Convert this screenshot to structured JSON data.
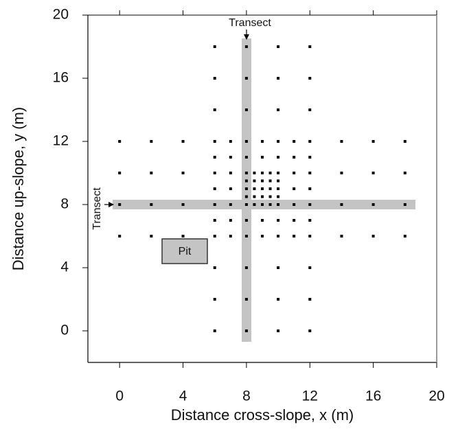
{
  "chart_data": {
    "type": "scatter",
    "x_label": "Distance cross-slope, x (m)",
    "y_label": "Distance up-slope, y (m)",
    "annotations": [
      "Transect",
      "Transect",
      "Pit"
    ],
    "color": "#000000",
    "xlim": [
      -2,
      20
    ],
    "ylim": [
      -2,
      20
    ],
    "xticks": [
      0,
      4,
      8,
      12,
      16,
      20
    ],
    "yticks": [
      0,
      4,
      8,
      12,
      16,
      20
    ],
    "x": [
      0,
      2,
      4,
      6,
      7,
      8,
      9,
      10,
      11,
      12,
      14,
      16,
      18,
      0,
      2,
      4,
      6,
      7,
      8,
      9,
      10,
      11,
      12,
      14,
      16,
      18,
      0,
      2,
      4,
      6,
      7,
      8,
      9,
      10,
      11,
      12,
      14,
      16,
      18,
      0,
      2,
      4,
      6,
      7,
      8,
      9,
      10,
      11,
      12,
      14,
      16,
      18,
      6,
      7,
      8,
      9,
      10,
      11,
      12,
      6,
      7,
      8,
      9,
      10,
      11,
      12,
      6,
      7,
      8,
      9,
      10,
      11,
      12,
      6,
      8,
      10,
      12,
      6,
      8,
      10,
      12,
      6,
      8,
      10,
      12,
      6,
      8,
      10,
      12,
      6,
      8,
      10,
      12,
      6,
      8,
      10,
      12,
      8.5,
      9.5,
      8,
      8.5,
      9,
      9.5,
      10,
      8.5,
      9.5,
      8,
      8.5,
      9,
      9.5,
      10,
      8.5,
      9.5
    ],
    "y": [
      12,
      12,
      12,
      12,
      12,
      12,
      12,
      12,
      12,
      12,
      12,
      12,
      12,
      10,
      10,
      10,
      10,
      10,
      10,
      10,
      10,
      10,
      10,
      10,
      10,
      10,
      8,
      8,
      8,
      8,
      8,
      8,
      8,
      8,
      8,
      8,
      8,
      8,
      8,
      6,
      6,
      6,
      6,
      6,
      6,
      6,
      6,
      6,
      6,
      6,
      6,
      6,
      11,
      11,
      11,
      11,
      11,
      11,
      11,
      9,
      9,
      9,
      9,
      9,
      9,
      9,
      7,
      7,
      7,
      7,
      7,
      7,
      7,
      18,
      18,
      18,
      18,
      16,
      16,
      16,
      16,
      14,
      14,
      14,
      14,
      4,
      4,
      4,
      4,
      2,
      2,
      2,
      2,
      0,
      0,
      0,
      0,
      8,
      8,
      8.5,
      8.5,
      8.5,
      8.5,
      8.5,
      9,
      9,
      9.5,
      9.5,
      9.5,
      9.5,
      9.5,
      10,
      10
    ]
  }
}
